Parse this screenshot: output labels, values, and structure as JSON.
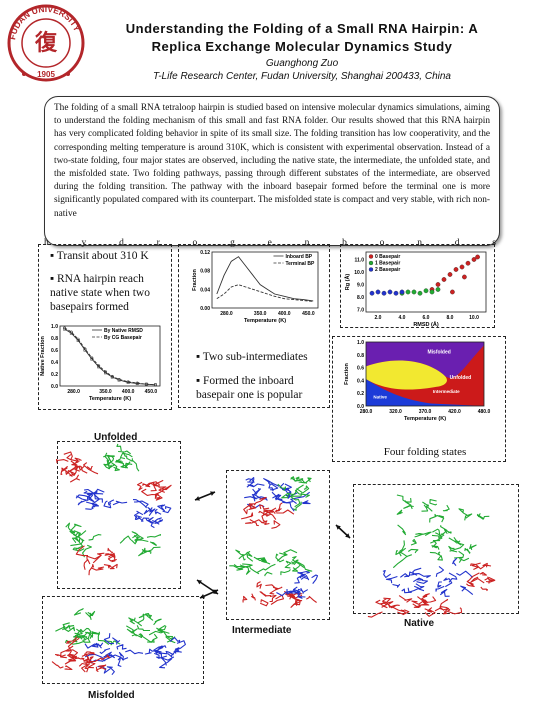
{
  "header": {
    "title_line1": "Understanding the Folding of a Small RNA Hairpin: A",
    "title_line2": "Replica Exchange Molecular Dynamics Study",
    "author": "Guanghong Zuo",
    "affiliation": "T-Life Research Center, Fudan University, Shanghai 200433, China",
    "logo_text_top": "FUDAN UNIVERSITY",
    "logo_year": "1905"
  },
  "abstract": {
    "text": "The folding of a small RNA tetraloop hairpin is studied based on intensive molecular dynamics simulations, aiming to understand the folding mechanism of this small and fast RNA folder. Our results showed that this RNA hairpin has very complicated folding behavior in spite of its small size. The folding transition has low cooperativity, and the corresponding melting temperature is around 310K, which is consistent with experimental observation. Instead of a two-state folding, four major states are observed, including the native state, the intermediate, the unfolded state, and the misfolded state. Two folding pathways, passing through different substates of the intermediate, are observed during the folding transition. The pathway with the inboard basepair formed before the terminal one is more significantly populated compared with its counterpart. The misfolded state is compact and very stable, with rich non-native",
    "overflow_letters": [
      "h",
      "y",
      "d",
      "r",
      "o",
      "g",
      "e",
      "n",
      "b",
      "o",
      "n",
      "d",
      "s"
    ]
  },
  "bullets": {
    "b1": "▪ Transit about 310 K",
    "b2": "▪ RNA hairpin reach native state when two basepairs formed",
    "b3": "▪ Two sub-intermediates",
    "b4": "▪ Formed the inboard basepair one is popular"
  },
  "four_states_caption": "Four folding states",
  "structures": {
    "unfolded": "Unfolded",
    "intermediate": "Intermediate",
    "native": "Native",
    "misfolded": "Misfolded"
  },
  "colors": {
    "red": "#cc2222",
    "green": "#22aa33",
    "blue": "#2233cc",
    "misfolded": "#6a1fb0",
    "unfolded": "#cc1a1a",
    "native_region": "#1c3bd8",
    "intermediate_region": "#f2e830"
  },
  "chart_data": [
    {
      "type": "line",
      "legend": [
        "By Native RMSD",
        "By CG Basepair"
      ],
      "xlabel": "Temperature (K)",
      "ylabel": "Native Fraction",
      "xticks": [
        "280.0",
        "350.0",
        "400.0",
        "450.0"
      ],
      "yticks": [
        "0.0",
        "0.2",
        "0.4",
        "0.6",
        "0.8",
        "1.0"
      ],
      "xlim": [
        250,
        470
      ],
      "ylim": [
        0,
        1
      ],
      "x": [
        260,
        275,
        290,
        305,
        320,
        335,
        350,
        365,
        380,
        400,
        420,
        440,
        460
      ],
      "series": [
        {
          "name": "By Native RMSD",
          "values": [
            0.95,
            0.88,
            0.76,
            0.6,
            0.45,
            0.32,
            0.22,
            0.15,
            0.1,
            0.06,
            0.04,
            0.03,
            0.02
          ]
        },
        {
          "name": "By CG Basepair",
          "values": [
            0.97,
            0.9,
            0.78,
            0.62,
            0.47,
            0.34,
            0.24,
            0.16,
            0.11,
            0.07,
            0.05,
            0.03,
            0.02
          ]
        }
      ]
    },
    {
      "type": "line",
      "legend": [
        "Inboard BP",
        "Terminal BP"
      ],
      "xlabel": "Temperature (K)",
      "ylabel": "Fraction",
      "xticks": [
        "280.0",
        "350.0",
        "400.0",
        "450.0"
      ],
      "yticks": [
        "0.00",
        "0.04",
        "0.08",
        "0.12"
      ],
      "xlim": [
        250,
        470
      ],
      "ylim": [
        0,
        0.12
      ],
      "x": [
        260,
        275,
        290,
        305,
        320,
        335,
        350,
        365,
        380,
        400,
        420,
        440,
        460
      ],
      "series": [
        {
          "name": "Inboard BP",
          "values": [
            0.03,
            0.07,
            0.1,
            0.11,
            0.09,
            0.07,
            0.05,
            0.04,
            0.03,
            0.025,
            0.02,
            0.018,
            0.015
          ]
        },
        {
          "name": "Terminal BP",
          "values": [
            0.02,
            0.03,
            0.045,
            0.05,
            0.045,
            0.04,
            0.035,
            0.03,
            0.025,
            0.02,
            0.018,
            0.016,
            0.014
          ]
        }
      ]
    },
    {
      "type": "scatter",
      "legend": [
        "0 Basepair",
        "1 Basepair",
        "2 Basepair"
      ],
      "xlabel": "RMSD (Å)",
      "ylabel": "Rg (Å)",
      "xticks": [
        "2.0",
        "4.0",
        "6.0",
        "8.0",
        "10.0"
      ],
      "yticks": [
        "7.0",
        "8.0",
        "9.0",
        "10.0",
        "11.0"
      ],
      "xlim": [
        1,
        11
      ],
      "ylim": [
        6.8,
        11.6
      ],
      "series": [
        {
          "name": "0 Basepair",
          "x": [
            6.5,
            7.0,
            7.5,
            8.0,
            8.5,
            9.0,
            9.5,
            10.0,
            10.3,
            8.2,
            9.2
          ],
          "y": [
            8.6,
            9.0,
            9.4,
            9.8,
            10.2,
            10.4,
            10.7,
            11.0,
            11.2,
            8.4,
            9.6
          ]
        },
        {
          "name": "1 Basepair",
          "x": [
            4.0,
            4.5,
            5.0,
            5.5,
            6.0,
            6.5,
            7.0
          ],
          "y": [
            8.3,
            8.4,
            8.4,
            8.3,
            8.5,
            8.4,
            8.6
          ]
        },
        {
          "name": "2 Basepair",
          "x": [
            1.5,
            2.0,
            2.5,
            3.0,
            3.5,
            4.0
          ],
          "y": [
            8.3,
            8.4,
            8.3,
            8.4,
            8.3,
            8.4
          ]
        }
      ]
    },
    {
      "type": "area",
      "xlabel": "Temperature (K)",
      "ylabel": "Fraction",
      "xticks": [
        "280.0",
        "320.0",
        "370.0",
        "420.0",
        "480.0"
      ],
      "yticks": [
        "0.0",
        "0.2",
        "0.4",
        "0.6",
        "0.8",
        "1.0"
      ],
      "xlim": [
        270,
        490
      ],
      "ylim": [
        0,
        1
      ],
      "labels": [
        "Misfolded",
        "Unfolded",
        "Intermediate",
        "Native"
      ]
    }
  ]
}
